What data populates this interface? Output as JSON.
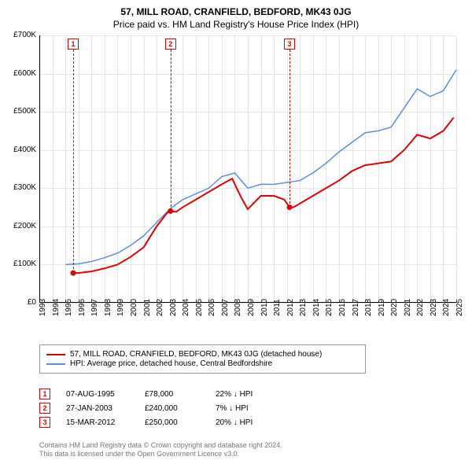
{
  "title_line1": "57, MILL ROAD, CRANFIELD, BEDFORD, MK43 0JG",
  "title_line2": "Price paid vs. HM Land Registry's House Price Index (HPI)",
  "chart": {
    "type": "line",
    "background_color": "#ffffff",
    "grid_color": "#e5e5e5",
    "axis_color": "#000000",
    "xlim": [
      1993,
      2025
    ],
    "ylim": [
      0,
      700000
    ],
    "x_ticks": [
      1993,
      1994,
      1995,
      1996,
      1997,
      1998,
      1999,
      2000,
      2001,
      2002,
      2003,
      2004,
      2005,
      2006,
      2007,
      2008,
      2009,
      2010,
      2011,
      2012,
      2013,
      2014,
      2015,
      2016,
      2017,
      2018,
      2019,
      2020,
      2021,
      2022,
      2023,
      2024,
      2025
    ],
    "y_ticks": [
      0,
      100000,
      200000,
      300000,
      400000,
      500000,
      600000,
      700000
    ],
    "y_tick_labels": [
      "£0",
      "£100K",
      "£200K",
      "£300K",
      "£400K",
      "£500K",
      "£600K",
      "£700K"
    ],
    "title_fontsize": 12,
    "axis_fontsize": 10,
    "series": [
      {
        "name": "57, MILL ROAD, CRANFIELD, BEDFORD, MK43 0JG (detached house)",
        "color": "#e40000",
        "line_width": 2,
        "x": [
          1995.6,
          1996,
          1997,
          1998,
          1999,
          2000,
          2001,
          2002,
          2002.8,
          2003.07,
          2003.5,
          2004,
          2005,
          2006,
          2007,
          2007.8,
          2008.5,
          2009,
          2010,
          2011,
          2011.8,
          2012.2,
          2012.5,
          2013,
          2014,
          2015,
          2016,
          2017,
          2018,
          2019,
          2020,
          2021,
          2022,
          2023,
          2024,
          2024.8
        ],
        "y": [
          78000,
          78000,
          82000,
          90000,
          100000,
          120000,
          145000,
          200000,
          235000,
          240000,
          238000,
          250000,
          270000,
          290000,
          310000,
          325000,
          275000,
          245000,
          280000,
          280000,
          270000,
          250000,
          250000,
          260000,
          280000,
          300000,
          320000,
          345000,
          360000,
          365000,
          370000,
          400000,
          440000,
          430000,
          450000,
          485000
        ]
      },
      {
        "name": "HPI: Average price, detached house, Central Bedfordshire",
        "color": "#5b8fd6",
        "line_width": 1.5,
        "x": [
          1995,
          1996,
          1997,
          1998,
          1999,
          2000,
          2001,
          2002,
          2003,
          2004,
          2005,
          2006,
          2007,
          2008,
          2009,
          2010,
          2011,
          2012,
          2013,
          2014,
          2015,
          2016,
          2017,
          2018,
          2019,
          2020,
          2021,
          2022,
          2023,
          2024,
          2025
        ],
        "y": [
          100000,
          102000,
          108000,
          118000,
          130000,
          150000,
          175000,
          210000,
          245000,
          270000,
          285000,
          300000,
          330000,
          340000,
          300000,
          310000,
          310000,
          315000,
          320000,
          340000,
          365000,
          395000,
          420000,
          445000,
          450000,
          460000,
          510000,
          560000,
          540000,
          555000,
          610000
        ]
      }
    ],
    "markers": [
      {
        "num": "1",
        "x": 1995.6,
        "color": "#e40000"
      },
      {
        "num": "2",
        "x": 2003.07,
        "color": "#e40000"
      },
      {
        "num": "3",
        "x": 2012.2,
        "color": "#e40000"
      }
    ]
  },
  "legend": {
    "items": [
      {
        "label": "57, MILL ROAD, CRANFIELD, BEDFORD, MK43 0JG (detached house)",
        "color": "#e40000"
      },
      {
        "label": "HPI: Average price, detached house, Central Bedfordshire",
        "color": "#5b8fd6"
      }
    ]
  },
  "sales": [
    {
      "num": "1",
      "color": "#e40000",
      "date": "07-AUG-1995",
      "price": "£78,000",
      "diff": "22% ↓ HPI"
    },
    {
      "num": "2",
      "color": "#e40000",
      "date": "27-JAN-2003",
      "price": "£240,000",
      "diff": "7% ↓ HPI"
    },
    {
      "num": "3",
      "color": "#e40000",
      "date": "15-MAR-2012",
      "price": "£250,000",
      "diff": "20% ↓ HPI"
    }
  ],
  "attribution": {
    "line1": "Contains HM Land Registry data © Crown copyright and database right 2024.",
    "line2": "This data is licensed under the Open Government Licence v3.0."
  }
}
